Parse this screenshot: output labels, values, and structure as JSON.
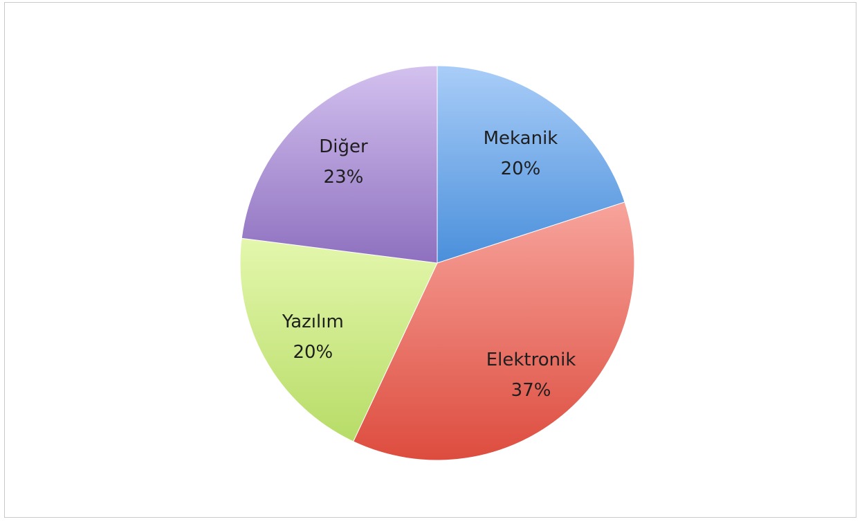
{
  "chart_data": {
    "type": "pie",
    "title": "",
    "slices": [
      {
        "label": "Mekanik",
        "value": 20,
        "display": "20%",
        "colors": [
          "#a9cdf8",
          "#4a8fdb"
        ]
      },
      {
        "label": "Elektronik",
        "value": 37,
        "display": "37%",
        "colors": [
          "#f7a49c",
          "#dd4c3e"
        ]
      },
      {
        "label": "Yazılım",
        "value": 20,
        "display": "20%",
        "colors": [
          "#e4f7ad",
          "#b7dc67"
        ]
      },
      {
        "label": "Diğer",
        "value": 23,
        "display": "23%",
        "colors": [
          "#d3c1ef",
          "#8e70bf"
        ]
      }
    ],
    "start_angle_deg": 0,
    "direction": "clockwise"
  }
}
